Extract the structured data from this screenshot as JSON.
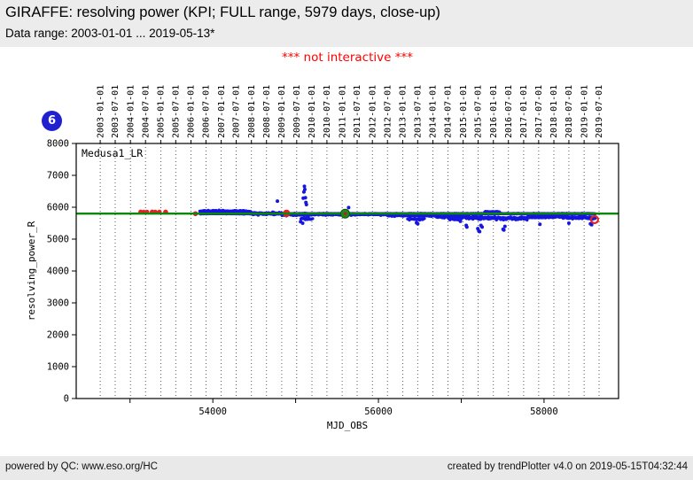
{
  "header": {
    "title": "GIRAFFE: resolving power (KPI; FULL range, 5979 days, close-up)",
    "subtitle": "Data range: 2003-01-01 ... 2019-05-13*"
  },
  "overlay": {
    "notice": "*** not interactive ***",
    "badge_count": "6"
  },
  "footer": {
    "left": "powered by QC: www.eso.org/HC",
    "right": "created by trendPlotter v4.0 on 2019-05-15T04:32:44"
  },
  "colors": {
    "header_bg": "#ececec",
    "footer_bg": "#e9e9e9",
    "notice_red": "#ff0000",
    "badge_blue": "#2020cf",
    "point_blue": "#1616e0",
    "point_red": "#e32222",
    "reference_green": "#098909",
    "green_marker": "#1d8a1d",
    "gridline": "#444444"
  },
  "chart_data": {
    "type": "scatter",
    "series_label": "Medusa1_LR",
    "xlabel": "MJD_OBS",
    "ylabel": "resolving_power_R",
    "xlim": [
      52350,
      58900
    ],
    "ylim": [
      0,
      8000
    ],
    "ytick_step": 1000,
    "xticks_major": [
      53000,
      54000,
      55000,
      56000,
      57000,
      58000
    ],
    "xtick_labeled": [
      54000,
      56000,
      58000
    ],
    "date_gridlines": [
      "2003-01-01",
      "2003-07-01",
      "2004-01-01",
      "2004-07-01",
      "2005-01-01",
      "2005-07-01",
      "2006-01-01",
      "2006-07-01",
      "2007-01-01",
      "2007-07-01",
      "2008-01-01",
      "2008-07-01",
      "2009-01-01",
      "2009-07-01",
      "2010-01-01",
      "2010-07-01",
      "2011-01-01",
      "2011-07-01",
      "2012-01-01",
      "2012-07-01",
      "2013-01-01",
      "2013-07-01",
      "2014-01-01",
      "2014-07-01",
      "2015-01-01",
      "2015-07-01",
      "2016-01-01",
      "2016-07-01",
      "2017-01-01",
      "2017-07-01",
      "2018-01-01",
      "2018-07-01",
      "2019-01-01",
      "2019-07-01"
    ],
    "reference_line": {
      "value": 5800
    },
    "blue_series": {
      "hugger": {
        "from": 53840,
        "to": 58620,
        "step": 6,
        "value": 5798,
        "jitter": 15
      },
      "segments": [
        {
          "from": 53840,
          "to": 54140,
          "mean": 5880,
          "spread": 35,
          "step": 4
        },
        {
          "from": 54140,
          "to": 54460,
          "mean": 5870,
          "spread": 45,
          "step": 4
        },
        {
          "from": 54460,
          "to": 54830,
          "mean": 5800,
          "spread": 55,
          "step": 4
        },
        {
          "from": 54830,
          "to": 55190,
          "mean": 5770,
          "spread": 55,
          "step": 4
        },
        {
          "from": 55060,
          "to": 55200,
          "mean": 5640,
          "spread": 45,
          "step": 7
        },
        {
          "from": 55190,
          "to": 55560,
          "mean": 5780,
          "spread": 40,
          "step": 4
        },
        {
          "from": 55560,
          "to": 56110,
          "mean": 5775,
          "spread": 35,
          "step": 4
        },
        {
          "from": 56110,
          "to": 56700,
          "mean": 5745,
          "spread": 50,
          "step": 4
        },
        {
          "from": 56350,
          "to": 56550,
          "mean": 5630,
          "spread": 40,
          "step": 8
        },
        {
          "from": 56700,
          "to": 57060,
          "mean": 5700,
          "spread": 55,
          "step": 4
        },
        {
          "from": 56850,
          "to": 57000,
          "mean": 5620,
          "spread": 35,
          "step": 8
        },
        {
          "from": 57060,
          "to": 57420,
          "mean": 5670,
          "spread": 65,
          "step": 4
        },
        {
          "from": 57280,
          "to": 57460,
          "mean": 5855,
          "spread": 20,
          "step": 5
        },
        {
          "from": 57420,
          "to": 57800,
          "mean": 5655,
          "spread": 70,
          "step": 4
        },
        {
          "from": 57800,
          "to": 58260,
          "mean": 5700,
          "spread": 55,
          "step": 4
        },
        {
          "from": 58260,
          "to": 58620,
          "mean": 5670,
          "spread": 55,
          "step": 4
        }
      ],
      "outliers": [
        [
          54780,
          6190
        ],
        [
          55092,
          6285
        ],
        [
          55100,
          6480
        ],
        [
          55106,
          6655
        ],
        [
          55111,
          6560
        ],
        [
          55118,
          6300
        ],
        [
          55124,
          6150
        ],
        [
          55130,
          6085
        ],
        [
          55640,
          5990
        ],
        [
          56990,
          5560
        ],
        [
          57200,
          5330
        ],
        [
          57212,
          5255
        ],
        [
          57222,
          5235
        ],
        [
          57238,
          5430
        ],
        [
          57252,
          5380
        ],
        [
          57505,
          5310
        ],
        [
          57515,
          5285
        ],
        [
          57528,
          5400
        ],
        [
          58560,
          5480
        ],
        [
          58575,
          5450
        ],
        [
          55060,
          5545
        ],
        [
          55085,
          5500
        ],
        [
          56460,
          5510
        ],
        [
          56475,
          5480
        ],
        [
          57060,
          5430
        ],
        [
          57068,
          5380
        ],
        [
          57950,
          5465
        ],
        [
          58300,
          5500
        ]
      ]
    },
    "red_points": [
      [
        53128,
        5855,
        2.6
      ],
      [
        53165,
        5850,
        2.6
      ],
      [
        53205,
        5852,
        2.6
      ],
      [
        53268,
        5848,
        2.8
      ],
      [
        53305,
        5850,
        2.6
      ],
      [
        53355,
        5853,
        2.6
      ],
      [
        53430,
        5848,
        2.8
      ],
      [
        53790,
        5798,
        2.8
      ],
      [
        54890,
        5808,
        4.2
      ]
    ],
    "green_point": [
      55598,
      5800,
      5
    ],
    "last_point_marker": [
      58610,
      5612,
      4
    ]
  }
}
